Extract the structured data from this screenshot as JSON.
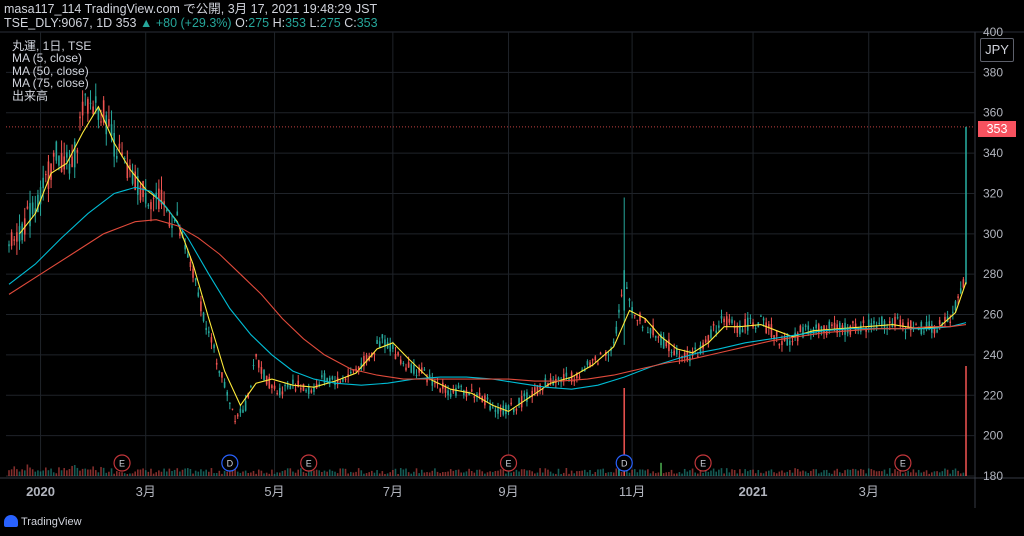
{
  "header": {
    "line1": "masa117_114 TradingView.com で公開, 3月 17, 2021 19:48:29 JST",
    "symbol": "TSE_DLY:9067, 1D 353",
    "change": "▲ +80 (+29.3%)",
    "o_label": "O:",
    "o_value": "275",
    "h_label": "H:",
    "h_value": "353",
    "l_label": "L:",
    "l_value": "275",
    "c_label": "C:",
    "c_value": "353"
  },
  "legend": {
    "symbol": "丸運, 1日, TSE",
    "ma5": "MA (5, close)",
    "ma50": "MA (50, close)",
    "ma75": "MA (75, close)",
    "volume": "出来高"
  },
  "currency_label": "JPY",
  "last_price_label": "353",
  "footer": {
    "brand": "TradingView"
  },
  "colors": {
    "up": "#26a69a",
    "down": "#ef5350",
    "ma5": "#ffeb3b",
    "ma50": "#00bcd4",
    "ma75": "#e04a3b",
    "grid": "#1f2329",
    "earnings": "#c2363b",
    "dividend": "#2962ff"
  },
  "chart_data": {
    "type": "candlestick",
    "y_axis": {
      "ticks": [
        180,
        200,
        220,
        240,
        260,
        280,
        300,
        320,
        340,
        360,
        380,
        400
      ],
      "range": [
        180,
        400
      ]
    },
    "x_axis": {
      "labels": [
        "2020",
        "3月",
        "5月",
        "7月",
        "9月",
        "11月",
        "2021",
        "3月"
      ]
    },
    "last_price": 353,
    "price_path": [
      [
        0,
        296
      ],
      [
        6,
        305
      ],
      [
        12,
        318
      ],
      [
        18,
        340
      ],
      [
        24,
        332
      ],
      [
        28,
        362
      ],
      [
        32,
        365
      ],
      [
        36,
        360
      ],
      [
        40,
        345
      ],
      [
        46,
        328
      ],
      [
        52,
        320
      ],
      [
        58,
        315
      ],
      [
        64,
        305
      ],
      [
        70,
        280
      ],
      [
        76,
        250
      ],
      [
        82,
        225
      ],
      [
        86,
        210
      ],
      [
        90,
        215
      ],
      [
        94,
        238
      ],
      [
        98,
        228
      ],
      [
        102,
        222
      ],
      [
        108,
        226
      ],
      [
        114,
        222
      ],
      [
        120,
        228
      ],
      [
        126,
        227
      ],
      [
        132,
        233
      ],
      [
        138,
        240
      ],
      [
        142,
        248
      ],
      [
        146,
        243
      ],
      [
        150,
        236
      ],
      [
        156,
        232
      ],
      [
        162,
        226
      ],
      [
        168,
        222
      ],
      [
        174,
        222
      ],
      [
        180,
        219
      ],
      [
        186,
        212
      ],
      [
        192,
        214
      ],
      [
        198,
        220
      ],
      [
        204,
        226
      ],
      [
        210,
        228
      ],
      [
        216,
        230
      ],
      [
        220,
        234
      ],
      [
        226,
        240
      ],
      [
        230,
        246
      ],
      [
        234,
        275
      ],
      [
        238,
        260
      ],
      [
        242,
        255
      ],
      [
        246,
        250
      ],
      [
        250,
        245
      ],
      [
        254,
        242
      ],
      [
        258,
        240
      ],
      [
        262,
        241
      ],
      [
        266,
        248
      ],
      [
        270,
        256
      ],
      [
        274,
        256
      ],
      [
        278,
        253
      ],
      [
        282,
        256
      ],
      [
        286,
        256
      ],
      [
        290,
        252
      ],
      [
        294,
        246
      ],
      [
        298,
        248
      ],
      [
        302,
        252
      ],
      [
        306,
        253
      ],
      [
        312,
        253
      ],
      [
        318,
        253
      ],
      [
        324,
        254
      ],
      [
        330,
        256
      ],
      [
        336,
        256
      ],
      [
        342,
        254
      ],
      [
        348,
        253
      ],
      [
        354,
        254
      ],
      [
        358,
        258
      ],
      [
        361,
        268
      ],
      [
        363,
        275
      ],
      [
        364,
        353
      ]
    ],
    "annotated_candles": [
      {
        "bar": 234,
        "open": 262,
        "high": 318,
        "low": 245,
        "close": 282
      },
      {
        "bar": 364,
        "open": 275,
        "high": 353,
        "low": 275,
        "close": 353
      }
    ],
    "series": [
      {
        "name": "MA (5, close)",
        "values": [
          [
            4,
            300
          ],
          [
            10,
            310
          ],
          [
            16,
            330
          ],
          [
            22,
            335
          ],
          [
            28,
            350
          ],
          [
            34,
            363
          ],
          [
            40,
            345
          ],
          [
            46,
            332
          ],
          [
            52,
            322
          ],
          [
            58,
            316
          ],
          [
            64,
            306
          ],
          [
            70,
            285
          ],
          [
            76,
            258
          ],
          [
            82,
            232
          ],
          [
            88,
            215
          ],
          [
            94,
            226
          ],
          [
            100,
            228
          ],
          [
            108,
            225
          ],
          [
            116,
            224
          ],
          [
            124,
            227
          ],
          [
            132,
            231
          ],
          [
            140,
            243
          ],
          [
            146,
            246
          ],
          [
            152,
            238
          ],
          [
            160,
            228
          ],
          [
            168,
            223
          ],
          [
            176,
            221
          ],
          [
            184,
            215
          ],
          [
            190,
            212
          ],
          [
            198,
            219
          ],
          [
            206,
            226
          ],
          [
            214,
            229
          ],
          [
            222,
            235
          ],
          [
            230,
            244
          ],
          [
            236,
            262
          ],
          [
            242,
            258
          ],
          [
            248,
            249
          ],
          [
            254,
            243
          ],
          [
            260,
            241
          ],
          [
            266,
            246
          ],
          [
            272,
            254
          ],
          [
            278,
            254
          ],
          [
            286,
            255
          ],
          [
            292,
            252
          ],
          [
            298,
            249
          ],
          [
            306,
            252
          ],
          [
            316,
            253
          ],
          [
            326,
            254
          ],
          [
            336,
            255
          ],
          [
            346,
            253
          ],
          [
            354,
            254
          ],
          [
            360,
            261
          ],
          [
            364,
            276
          ]
        ]
      },
      {
        "name": "MA (50, close)",
        "values": [
          [
            0,
            275
          ],
          [
            10,
            285
          ],
          [
            20,
            298
          ],
          [
            30,
            310
          ],
          [
            40,
            320
          ],
          [
            48,
            323
          ],
          [
            54,
            321
          ],
          [
            60,
            313
          ],
          [
            68,
            298
          ],
          [
            76,
            280
          ],
          [
            84,
            263
          ],
          [
            92,
            250
          ],
          [
            100,
            240
          ],
          [
            108,
            232
          ],
          [
            116,
            228
          ],
          [
            124,
            226
          ],
          [
            134,
            225
          ],
          [
            144,
            226
          ],
          [
            154,
            228
          ],
          [
            164,
            229
          ],
          [
            174,
            229
          ],
          [
            184,
            228
          ],
          [
            194,
            226
          ],
          [
            204,
            224
          ],
          [
            214,
            223
          ],
          [
            224,
            225
          ],
          [
            234,
            229
          ],
          [
            244,
            234
          ],
          [
            254,
            238
          ],
          [
            262,
            241
          ],
          [
            270,
            243
          ],
          [
            280,
            246
          ],
          [
            290,
            248
          ],
          [
            300,
            250
          ],
          [
            310,
            252
          ],
          [
            320,
            253
          ],
          [
            330,
            253
          ],
          [
            340,
            253
          ],
          [
            350,
            253
          ],
          [
            358,
            254
          ],
          [
            364,
            256
          ]
        ]
      },
      {
        "name": "MA (75, close)",
        "values": [
          [
            0,
            270
          ],
          [
            12,
            280
          ],
          [
            24,
            290
          ],
          [
            36,
            300
          ],
          [
            48,
            306
          ],
          [
            56,
            307
          ],
          [
            64,
            304
          ],
          [
            72,
            298
          ],
          [
            80,
            290
          ],
          [
            88,
            280
          ],
          [
            96,
            270
          ],
          [
            104,
            258
          ],
          [
            112,
            248
          ],
          [
            120,
            240
          ],
          [
            130,
            233
          ],
          [
            140,
            230
          ],
          [
            150,
            228
          ],
          [
            160,
            228
          ],
          [
            170,
            228
          ],
          [
            180,
            228
          ],
          [
            190,
            228
          ],
          [
            200,
            227
          ],
          [
            210,
            227
          ],
          [
            220,
            228
          ],
          [
            230,
            230
          ],
          [
            240,
            233
          ],
          [
            250,
            236
          ],
          [
            260,
            238
          ],
          [
            270,
            241
          ],
          [
            280,
            244
          ],
          [
            290,
            247
          ],
          [
            300,
            249
          ],
          [
            310,
            251
          ],
          [
            320,
            252
          ],
          [
            330,
            253
          ],
          [
            340,
            253
          ],
          [
            350,
            254
          ],
          [
            358,
            254
          ],
          [
            364,
            255
          ]
        ]
      }
    ],
    "volume": {
      "spikes": [
        [
          232,
          0.12
        ],
        [
          234,
          0.8
        ],
        [
          248,
          0.12
        ],
        [
          364,
          1.0
        ]
      ]
    },
    "events": [
      {
        "type": "E",
        "date_index": 43
      },
      {
        "type": "D",
        "date_index": 84
      },
      {
        "type": "E",
        "date_index": 114
      },
      {
        "type": "E",
        "date_index": 190
      },
      {
        "type": "D",
        "date_index": 234
      },
      {
        "type": "E",
        "date_index": 264
      },
      {
        "type": "E",
        "date_index": 340
      }
    ]
  }
}
